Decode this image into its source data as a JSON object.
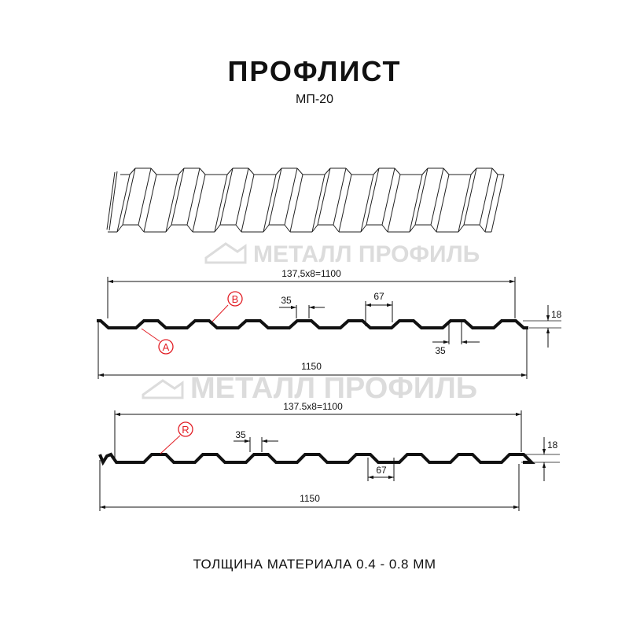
{
  "title": "ПРОФЛИСТ",
  "subtitle": "МП-20",
  "watermark": "МЕТАЛЛ ПРОФИЛЬ",
  "profile_top": {
    "pitch_label": "137,5x8=1100",
    "width_label": "1150",
    "top_rib_label": "35",
    "rib_base_label": "67",
    "bottom_rib_label": "35",
    "height_label": "18",
    "marker_a": "A",
    "marker_b": "B"
  },
  "profile_bottom": {
    "pitch_label": "137.5x8=1100",
    "width_label": "1150",
    "top_rib_label": "35",
    "rib_base_label": "67",
    "height_label": "18",
    "marker_r": "R"
  },
  "footer": "ТОЛЩИНА МАТЕРИАЛА 0.4 - 0.8 ММ",
  "colors": {
    "line": "#111111",
    "marker": "#e21f26",
    "watermark": "#dcdcdc"
  }
}
